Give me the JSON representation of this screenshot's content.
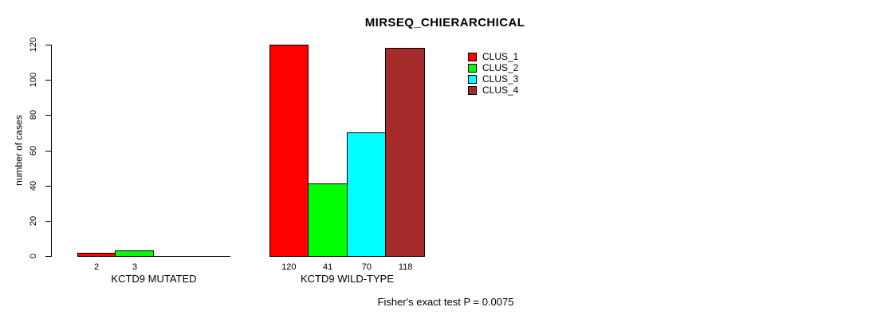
{
  "chart_data": {
    "type": "bar",
    "title": "MIRSEQ_CHIERARCHICAL",
    "ylabel": "number of cases",
    "xlabel": "",
    "ylim": [
      0,
      120
    ],
    "yticks": [
      0,
      20,
      40,
      60,
      80,
      100,
      120
    ],
    "grid": false,
    "legend_position": "top-right-inside",
    "series": [
      {
        "name": "CLUS_1",
        "color": "#FF0000",
        "values": [
          2,
          120
        ]
      },
      {
        "name": "CLUS_2",
        "color": "#00FF00",
        "values": [
          3,
          41
        ]
      },
      {
        "name": "CLUS_3",
        "color": "#00FFFF",
        "values": [
          0,
          70
        ]
      },
      {
        "name": "CLUS_4",
        "color": "#A52A2A",
        "values": [
          0,
          118
        ]
      }
    ],
    "groups": [
      {
        "label": "KCTD9 MUTATED",
        "values": [
          2,
          3,
          0,
          0
        ],
        "bar_labels": [
          "2",
          "3",
          "",
          ""
        ]
      },
      {
        "label": "KCTD9 WILD-TYPE",
        "values": [
          120,
          41,
          70,
          118
        ],
        "bar_labels": [
          "120",
          "41",
          "70",
          "118"
        ]
      }
    ],
    "series_colors": [
      "#FF0000",
      "#00FF00",
      "#00FFFF",
      "#A52A2A"
    ],
    "legend": [
      {
        "label": "CLUS_1",
        "color": "#FF0000"
      },
      {
        "label": "CLUS_2",
        "color": "#00FF00"
      },
      {
        "label": "CLUS_3",
        "color": "#00FFFF"
      },
      {
        "label": "CLUS_4",
        "color": "#A52A2A"
      }
    ],
    "footnote": "Fisher's exact test P = 0.0075",
    "axis_color": "#000000",
    "text_color": "#000000"
  }
}
